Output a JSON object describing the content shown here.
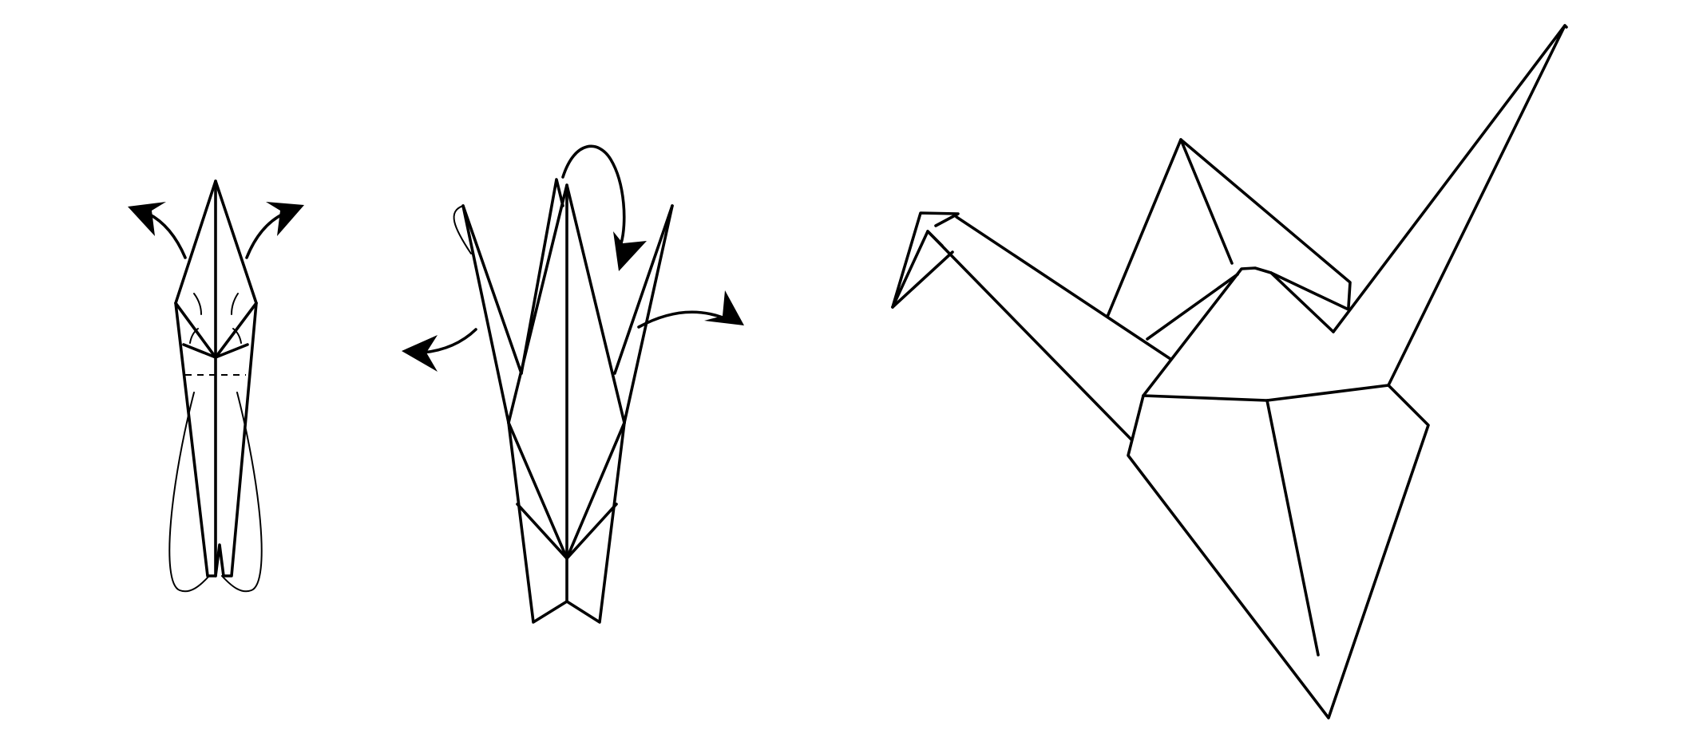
{
  "diagram": {
    "subject": "origami-crane-folding-steps",
    "background_color": "#ffffff",
    "line_color": "#000000",
    "steps": [
      {
        "name": "step-inside-reverse-folds",
        "arrows": 2
      },
      {
        "name": "step-fold-head-and-wings",
        "arrows": 3
      },
      {
        "name": "step-finished-crane",
        "arrows": 0
      }
    ]
  }
}
